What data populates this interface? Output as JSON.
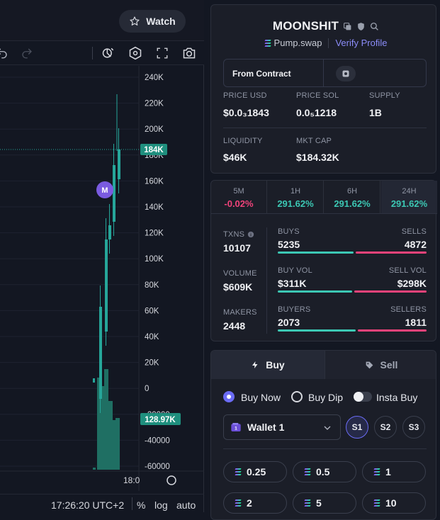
{
  "header": {
    "watch_label": "Watch"
  },
  "chart": {
    "price_axis": [
      "240K",
      "220K",
      "200K",
      "180K",
      "160K",
      "140K",
      "120K",
      "100K",
      "80K",
      "60K",
      "40K",
      "20K",
      "0",
      "-20000",
      "-40000",
      "-60000"
    ],
    "current_price_tag": "184K",
    "volume_tag": "128.97K",
    "marker_label": "M",
    "time_label": "18:0",
    "clock": "17:26:20 UTC+2",
    "pct_label": "%",
    "log_label": "log",
    "auto_label": "auto"
  },
  "token": {
    "name": "MOONSHIT",
    "dex": "Pump.swap",
    "verify": "Verify Profile",
    "contract_label": "From Contract",
    "stats": [
      {
        "label": "PRICE USD",
        "value": "$0.0₃1843"
      },
      {
        "label": "PRICE SOL",
        "value": "0.0₅1218"
      },
      {
        "label": "SUPPLY",
        "value": "1B"
      },
      {
        "label": "LIQUIDITY",
        "value": "$46K"
      },
      {
        "label": "MKT CAP",
        "value": "$184.32K"
      }
    ]
  },
  "periods": [
    {
      "label": "5M",
      "value": "-0.02%",
      "color": "#f0437a"
    },
    {
      "label": "1H",
      "value": "291.62%",
      "color": "#3cc8b4"
    },
    {
      "label": "6H",
      "value": "291.62%",
      "color": "#3cc8b4"
    },
    {
      "label": "24H",
      "value": "291.62%",
      "color": "#3cc8b4"
    }
  ],
  "txn_stats": {
    "txns_label": "TXNS",
    "txns_value": "10107",
    "volume_label": "VOLUME",
    "volume_value": "$609K",
    "makers_label": "MAKERS",
    "makers_value": "2448",
    "rows": [
      {
        "left_label": "BUYS",
        "left_value": "5235",
        "right_label": "SELLS",
        "right_value": "4872",
        "left_fraction": 0.518
      },
      {
        "left_label": "BUY VOL",
        "left_value": "$311K",
        "right_label": "SELL VOL",
        "right_value": "$298K",
        "left_fraction": 0.511
      },
      {
        "left_label": "BUYERS",
        "left_value": "2073",
        "right_label": "SELLERS",
        "right_value": "1811",
        "left_fraction": 0.534
      }
    ]
  },
  "trade": {
    "buy_tab": "Buy",
    "sell_tab": "Sell",
    "buy_now": "Buy Now",
    "buy_dip": "Buy Dip",
    "insta_buy": "Insta Buy",
    "wallet": "Wallet 1",
    "slots": [
      "S1",
      "S2",
      "S3"
    ],
    "amounts": [
      "0.25",
      "0.5",
      "1",
      "2",
      "5",
      "10"
    ]
  },
  "colors": {
    "up": "#26a69a",
    "down": "#f0437a",
    "accent": "#6b6cf6",
    "teal": "#3cc8b4"
  }
}
